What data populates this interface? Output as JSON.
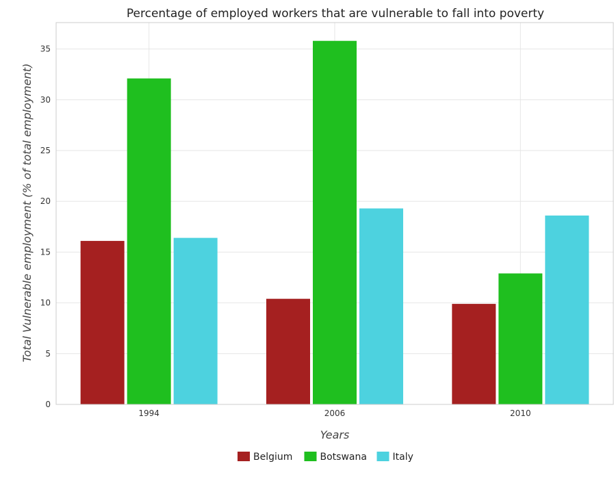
{
  "chart_data": {
    "type": "bar",
    "title": "Percentage of employed workers that are vulnerable to fall into poverty",
    "xlabel": "Years",
    "ylabel": "Total Vulnerable employment (% of total employment)",
    "categories": [
      "1994",
      "2006",
      "2010"
    ],
    "series": [
      {
        "name": "Belgium",
        "values": [
          16.1,
          10.4,
          9.9
        ],
        "color": "#a52020"
      },
      {
        "name": "Botswana",
        "values": [
          32.1,
          35.8,
          12.9
        ],
        "color": "#1fbf1f"
      },
      {
        "name": "Italy",
        "values": [
          16.4,
          19.3,
          18.6
        ],
        "color": "#4dd2df"
      }
    ],
    "ylim": [
      0,
      37.6
    ],
    "yticks": [
      0,
      5,
      10,
      15,
      20,
      25,
      30,
      35
    ],
    "grid": true,
    "legend_position": "bottom-center"
  }
}
